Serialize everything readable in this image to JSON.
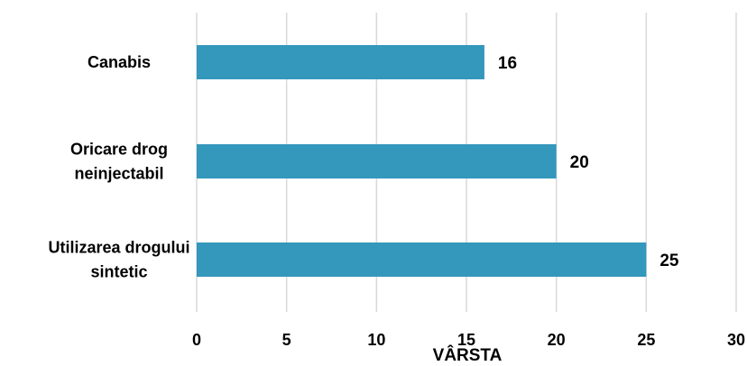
{
  "chart_data": {
    "type": "bar",
    "orientation": "horizontal",
    "categories": [
      "Canabis",
      "Oricare drog neinjectabil",
      "Utilizarea drogului sintetic"
    ],
    "category_lines": [
      [
        "Canabis"
      ],
      [
        "Oricare drog",
        "neinjectabil"
      ],
      [
        "Utilizarea drogului",
        "sintetic"
      ]
    ],
    "values": [
      16,
      20,
      25
    ],
    "data_labels": [
      "16",
      "20",
      "25"
    ],
    "xlabel": "VÂRSTA",
    "ylabel": "",
    "xlim": [
      0,
      30
    ],
    "x_ticks": [
      0,
      5,
      10,
      15,
      20,
      25,
      30
    ],
    "x_tick_labels": [
      "0",
      "5",
      "10",
      "15",
      "20",
      "25",
      "30"
    ],
    "grid": "vertical",
    "legend": "none",
    "bar_color": "#3497bc",
    "grid_color": "#d9d9d9"
  }
}
